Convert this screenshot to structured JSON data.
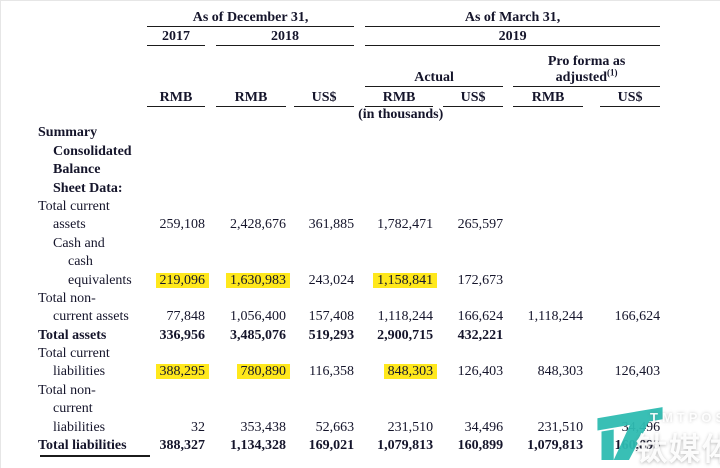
{
  "page": {
    "text_color": "#15152b",
    "highlight_color": "#ffe81c",
    "rule_color": "#1b1b1b"
  },
  "table": {
    "headers": {
      "dec31": "As of December 31,",
      "mar31": "As of March 31,",
      "y2017": "2017",
      "y2018": "2018",
      "y2019": "2019",
      "actual": "Actual",
      "proforma_line1": "Pro forma as",
      "proforma_line2": "adjusted",
      "proforma_footnote_ref": "(1)",
      "in_thousands": "(in thousands)",
      "units": [
        "RMB",
        "RMB",
        "US$",
        "RMB",
        "US$",
        "RMB",
        "US$"
      ]
    },
    "rows": [
      {
        "label": "Summary",
        "indent": 0,
        "bold": true
      },
      {
        "label": "Consolidated",
        "indent": 1,
        "bold": true
      },
      {
        "label": "Balance",
        "indent": 1,
        "bold": true
      },
      {
        "label": "Sheet Data:",
        "indent": 1,
        "bold": true
      },
      {
        "label": "Total current",
        "indent": 0
      },
      {
        "label": "assets",
        "indent": 1,
        "values": [
          "259,108",
          "2,428,676",
          "361,885",
          "1,782,471",
          "265,597",
          "",
          ""
        ]
      },
      {
        "label": "Cash and",
        "indent": 1
      },
      {
        "label": "cash",
        "indent": 2
      },
      {
        "label": "equivalents",
        "indent": 2,
        "values": [
          "219,096",
          "1,630,983",
          "243,024",
          "1,158,841",
          "172,673",
          "",
          ""
        ],
        "highlights": [
          0,
          1,
          3
        ]
      },
      {
        "label": "Total non-",
        "indent": 0
      },
      {
        "label": "current assets",
        "indent": 1,
        "values": [
          "77,848",
          "1,056,400",
          "157,408",
          "1,118,244",
          "166,624",
          "1,118,244",
          "166,624"
        ]
      },
      {
        "label": "Total assets",
        "indent": 0,
        "bold": true,
        "bold_values": true,
        "values": [
          "336,956",
          "3,485,076",
          "519,293",
          "2,900,715",
          "432,221",
          "",
          ""
        ]
      },
      {
        "label": "Total current",
        "indent": 0
      },
      {
        "label": "liabilities",
        "indent": 1,
        "values": [
          "388,295",
          "780,890",
          "116,358",
          "848,303",
          "126,403",
          "848,303",
          "126,403"
        ],
        "highlights": [
          0,
          1,
          3
        ]
      },
      {
        "label": "Total non-",
        "indent": 0
      },
      {
        "label": "current",
        "indent": 1
      },
      {
        "label": "liabilities",
        "indent": 1,
        "values": [
          "32",
          "353,438",
          "52,663",
          "231,510",
          "34,496",
          "231,510",
          "34,496"
        ]
      },
      {
        "label": "Total liabilities",
        "indent": 0,
        "bold": true,
        "bold_values": true,
        "values": [
          "388,327",
          "1,134,328",
          "169,021",
          "1,079,813",
          "160,899",
          "1,079,813",
          "160,899"
        ]
      }
    ]
  },
  "watermark": {
    "brand_en": "TMTPOST",
    "brand_cn": "钛媒体",
    "logo_color": "#2fbcb2"
  }
}
